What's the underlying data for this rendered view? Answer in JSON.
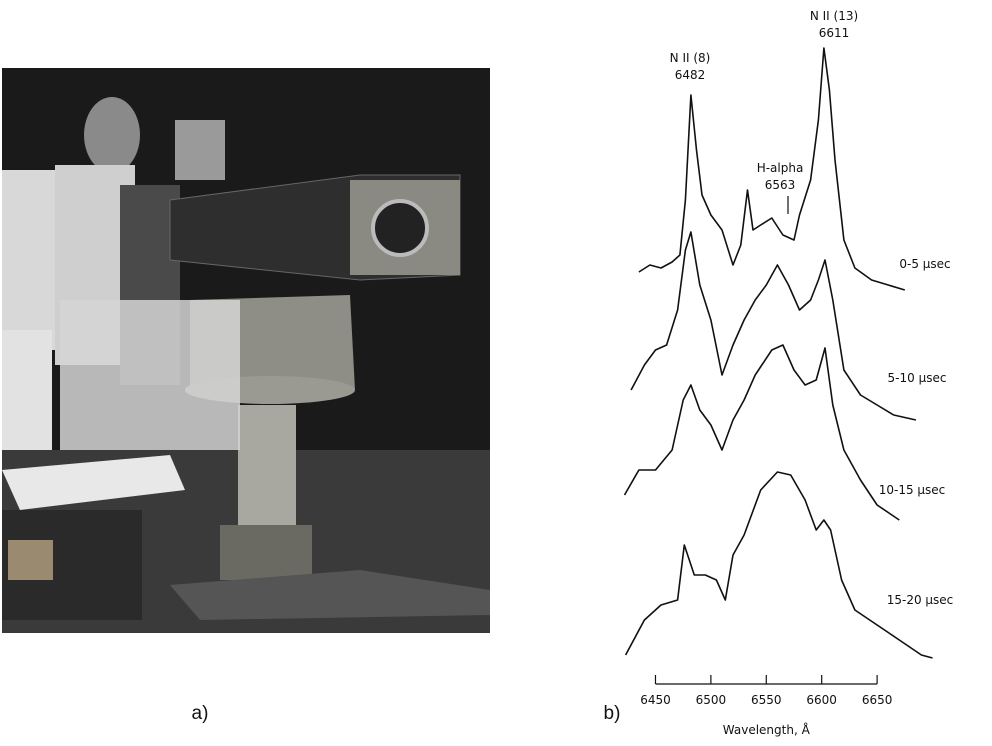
{
  "figure": {
    "panel_a_label": "a)",
    "panel_b_label": "b)"
  },
  "chart_data": {
    "type": "line",
    "x_label": "Wavelength, Å",
    "xlim": [
      6415,
      6700
    ],
    "xticks": [
      6450,
      6500,
      6550,
      6600,
      6650
    ],
    "ylim": [
      0,
      640
    ],
    "annotations": [
      {
        "text": "N II (8)",
        "label": "6482"
      },
      {
        "text": "N II (13)",
        "label": "6611"
      },
      {
        "text": "H-alpha",
        "label": "6563"
      }
    ],
    "series": [
      {
        "name": "0-5 µsec",
        "color": "#111111",
        "x": [
          6435,
          6445,
          6455,
          6465,
          6472,
          6477,
          6482,
          6487,
          6492,
          6500,
          6510,
          6520,
          6527,
          6533,
          6538,
          6545,
          6555,
          6565,
          6575,
          6580,
          6590,
          6597,
          6602,
          6607,
          6612,
          6620,
          6630,
          6645,
          6660,
          6675
        ],
        "values": [
          408,
          415,
          412,
          418,
          425,
          480,
          585,
          530,
          485,
          465,
          450,
          415,
          435,
          490,
          450,
          455,
          462,
          445,
          440,
          465,
          500,
          560,
          632,
          590,
          520,
          440,
          412,
          400,
          395,
          390
        ]
      },
      {
        "name": "5-10 µsec",
        "color": "#111111",
        "x": [
          6428,
          6440,
          6450,
          6460,
          6470,
          6477,
          6482,
          6490,
          6500,
          6510,
          6520,
          6530,
          6540,
          6550,
          6560,
          6570,
          6580,
          6590,
          6597,
          6603,
          6610,
          6620,
          6635,
          6650,
          6665,
          6685
        ],
        "values": [
          290,
          315,
          330,
          335,
          370,
          430,
          448,
          395,
          360,
          305,
          335,
          360,
          380,
          395,
          415,
          395,
          370,
          380,
          400,
          420,
          380,
          310,
          285,
          275,
          265,
          260
        ]
      },
      {
        "name": "10-15 µsec",
        "color": "#111111",
        "x": [
          6422,
          6435,
          6450,
          6465,
          6475,
          6482,
          6490,
          6500,
          6510,
          6520,
          6530,
          6540,
          6555,
          6565,
          6575,
          6585,
          6595,
          6603,
          6610,
          6620,
          6635,
          6650,
          6670
        ],
        "values": [
          185,
          210,
          210,
          230,
          280,
          295,
          270,
          255,
          230,
          260,
          280,
          305,
          330,
          335,
          310,
          295,
          300,
          332,
          275,
          230,
          200,
          175,
          160
        ]
      },
      {
        "name": "15-20 µsec",
        "color": "#111111",
        "x": [
          6423,
          6440,
          6455,
          6470,
          6476,
          6485,
          6495,
          6505,
          6513,
          6520,
          6530,
          6545,
          6560,
          6572,
          6585,
          6595,
          6602,
          6608,
          6618,
          6630,
          6650,
          6670,
          6690,
          6700
        ],
        "values": [
          25,
          60,
          75,
          80,
          135,
          105,
          105,
          100,
          80,
          125,
          145,
          190,
          208,
          205,
          180,
          150,
          160,
          150,
          100,
          70,
          55,
          40,
          25,
          22
        ]
      }
    ]
  }
}
